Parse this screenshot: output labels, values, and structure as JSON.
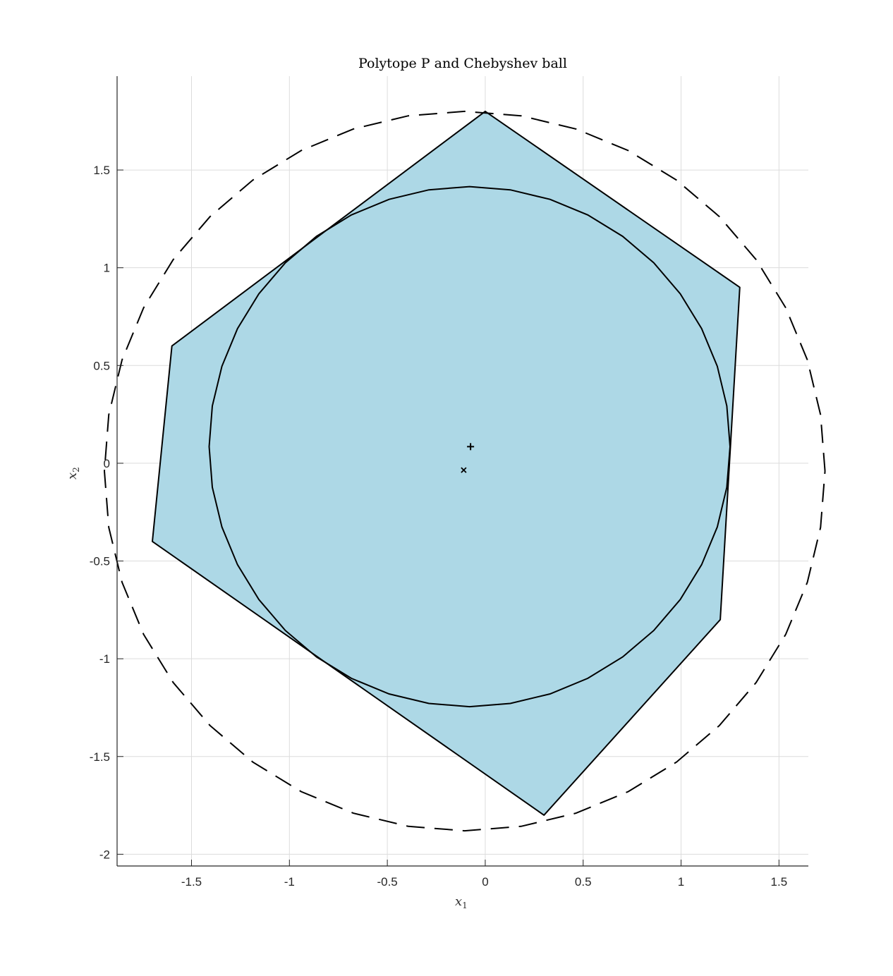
{
  "chart_data": {
    "type": "line",
    "title": "Polytope P and Chebyshev ball",
    "xlabel": "x",
    "xlabel_sub": "1",
    "ylabel": "x",
    "ylabel_sub": "2",
    "xlim": [
      -1.88,
      1.65
    ],
    "ylim": [
      -2.06,
      1.98
    ],
    "xticks": [
      -1.5,
      -1,
      -0.5,
      0,
      0.5,
      1,
      1.5
    ],
    "xtick_labels": [
      "-1.5",
      "-1",
      "-0.5",
      "0",
      "0.5",
      "1",
      "1.5"
    ],
    "yticks": [
      -2,
      -1.5,
      -1,
      -0.5,
      0,
      0.5,
      1,
      1.5
    ],
    "ytick_labels": [
      "-2",
      "-1.5",
      "-1",
      "-0.5",
      "0",
      "0.5",
      "1",
      "1.5"
    ],
    "grid": true,
    "series": [
      {
        "kind": "polygon",
        "fill": "#ADD8E6",
        "stroke": "#000000",
        "points": [
          [
            0,
            1.8
          ],
          [
            1.3,
            0.9
          ],
          [
            1.2,
            -0.8
          ],
          [
            0.3,
            -1.8
          ],
          [
            -1.7,
            -0.4
          ],
          [
            -1.6,
            0.6
          ]
        ]
      },
      {
        "kind": "circle",
        "style": "solid",
        "stroke": "#000000",
        "center": [
          -0.08,
          0.085
        ],
        "radius": 1.33
      },
      {
        "kind": "circle",
        "style": "dashed",
        "stroke": "#000000",
        "center": [
          -0.105,
          -0.04
        ],
        "radius": 1.84
      },
      {
        "kind": "marker",
        "marker": "plus",
        "point": [
          -0.075,
          0.085
        ]
      },
      {
        "kind": "marker",
        "marker": "x",
        "point": [
          -0.11,
          -0.035
        ]
      }
    ]
  }
}
